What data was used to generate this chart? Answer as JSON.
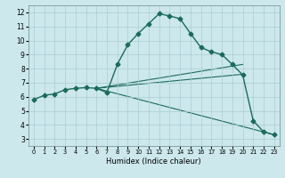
{
  "title": "",
  "xlabel": "Humidex (Indice chaleur)",
  "bg_color": "#cce8ec",
  "grid_color": "#aaccd4",
  "line_color": "#1a6b5a",
  "xlim": [
    -0.5,
    23.5
  ],
  "ylim": [
    2.5,
    12.5
  ],
  "xticks": [
    0,
    1,
    2,
    3,
    4,
    5,
    6,
    7,
    8,
    9,
    10,
    11,
    12,
    13,
    14,
    15,
    16,
    17,
    18,
    19,
    20,
    21,
    22,
    23
  ],
  "yticks": [
    3,
    4,
    5,
    6,
    7,
    8,
    9,
    10,
    11,
    12
  ],
  "main_line": {
    "x": [
      0,
      1,
      2,
      3,
      4,
      5,
      6,
      7,
      8,
      9,
      10,
      11,
      12,
      13,
      14,
      15,
      16,
      17,
      18,
      19,
      20,
      21,
      22,
      23
    ],
    "y": [
      5.8,
      6.1,
      6.2,
      6.5,
      6.6,
      6.65,
      6.6,
      6.3,
      8.3,
      9.7,
      10.5,
      11.2,
      11.9,
      11.75,
      11.55,
      10.5,
      9.5,
      9.2,
      9.0,
      8.3,
      7.55,
      4.3,
      3.5,
      3.3
    ]
  },
  "fan_lines": [
    {
      "x": [
        6,
        20
      ],
      "y": [
        6.6,
        8.3
      ]
    },
    {
      "x": [
        6,
        20
      ],
      "y": [
        6.6,
        7.6
      ]
    },
    {
      "x": [
        6,
        23
      ],
      "y": [
        6.6,
        3.3
      ]
    }
  ]
}
